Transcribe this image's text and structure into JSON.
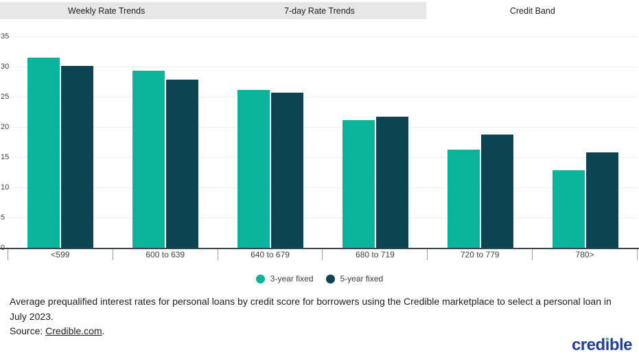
{
  "tabs": [
    {
      "label": "Weekly Rate Trends",
      "active": false
    },
    {
      "label": "7-day Rate Trends",
      "active": false
    },
    {
      "label": "Credit Band",
      "active": true
    }
  ],
  "chart_data": {
    "type": "bar",
    "categories": [
      "<599",
      "600 to 639",
      "640 to 679",
      "680 to 719",
      "720 to 779",
      "780>"
    ],
    "series": [
      {
        "name": "3-year fixed",
        "color": "#0ab39c",
        "values": [
          31.5,
          29.3,
          26.1,
          21.1,
          16.3,
          12.8
        ]
      },
      {
        "name": "5-year fixed",
        "color": "#0d4453",
        "values": [
          30.1,
          27.8,
          25.7,
          21.7,
          18.7,
          15.8
        ]
      }
    ],
    "title": "",
    "xlabel": "",
    "ylabel": "",
    "ylim": [
      0,
      35
    ],
    "yticks": [
      0,
      5,
      10,
      15,
      20,
      25,
      30,
      35
    ],
    "grid": true,
    "legend_position": "bottom"
  },
  "caption": {
    "line1": "Average prequalified interest rates for personal loans by credit score for borrowers using the Credible marketplace to select a personal loan in July 2023.",
    "source_prefix": "Source: ",
    "source_link_text": "Credible.com",
    "source_suffix": "."
  },
  "logo": {
    "text": "credible",
    "part1": "cred",
    "i_char": "ı",
    "part2": "ble"
  },
  "colors": {
    "tab_bg": "#e7e7e7",
    "active_tab_bg": "#ffffff",
    "axis_line": "#37474f",
    "gridline": "#ececec",
    "logo_blue": "#20409a",
    "logo_dot_green": "#3cb87e"
  }
}
